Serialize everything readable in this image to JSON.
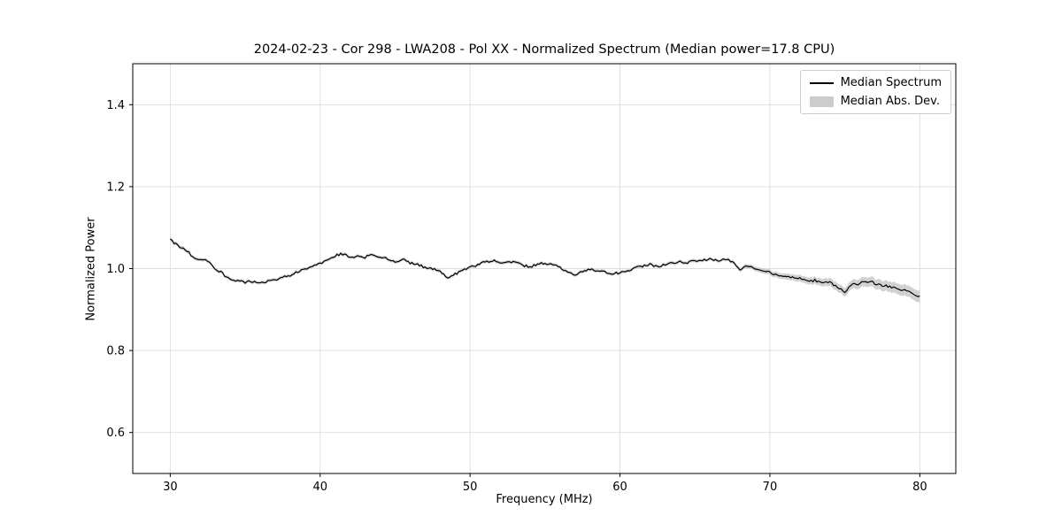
{
  "chart_data": {
    "type": "line",
    "title": "2024-02-23 - Cor 298 - LWA208 - Pol XX - Normalized Spectrum (Median power=17.8 CPU)",
    "xlabel": "Frequency (MHz)",
    "ylabel": "Normalized Power",
    "xlim": [
      27.5,
      82.4
    ],
    "ylim": [
      0.5,
      1.5
    ],
    "xticks": [
      {
        "v": 30,
        "label": "30"
      },
      {
        "v": 40,
        "label": "40"
      },
      {
        "v": 50,
        "label": "50"
      },
      {
        "v": 60,
        "label": "60"
      },
      {
        "v": 70,
        "label": "70"
      },
      {
        "v": 80,
        "label": "80"
      }
    ],
    "yticks": [
      {
        "v": 0.6,
        "label": "0.6"
      },
      {
        "v": 0.8,
        "label": "0.8"
      },
      {
        "v": 1.0,
        "label": "1.0"
      },
      {
        "v": 1.2,
        "label": "1.2"
      },
      {
        "v": 1.4,
        "label": "1.4"
      }
    ],
    "grid": true,
    "legend_position": "upper right",
    "legend": [
      "Median Spectrum",
      "Median Abs. Dev."
    ],
    "line_color": "#000000",
    "band_color": "#cccccc",
    "grid_color": "#dddddd",
    "noise_amplitude": 0.003,
    "x": [
      30,
      30.5,
      31,
      31.5,
      32,
      32.5,
      33,
      33.5,
      34,
      34.5,
      35,
      35.5,
      36,
      36.5,
      37,
      37.5,
      38,
      38.5,
      39,
      39.5,
      40,
      40.5,
      41,
      41.5,
      42,
      42.5,
      43,
      43.5,
      44,
      44.5,
      45,
      45.5,
      46,
      46.5,
      47,
      47.5,
      48,
      48.5,
      49,
      49.5,
      50,
      50.5,
      51,
      51.5,
      52,
      52.5,
      53,
      53.5,
      54,
      54.5,
      55,
      55.5,
      56,
      56.5,
      57,
      57.5,
      58,
      58.5,
      59,
      59.5,
      60,
      60.5,
      61,
      61.5,
      62,
      62.5,
      63,
      63.5,
      64,
      64.5,
      65,
      65.5,
      66,
      66.5,
      67,
      67.5,
      68,
      68.5,
      69,
      69.5,
      70,
      70.5,
      71,
      71.5,
      72,
      72.5,
      73,
      73.5,
      74,
      74.5,
      75,
      75.5,
      76,
      76.5,
      77,
      77.5,
      78,
      78.5,
      79,
      79.5,
      80
    ],
    "values": [
      1.072,
      1.055,
      1.048,
      1.03,
      1.022,
      1.018,
      1.0,
      0.988,
      0.972,
      0.97,
      0.966,
      0.969,
      0.964,
      0.97,
      0.972,
      0.98,
      0.983,
      0.993,
      0.998,
      1.008,
      1.012,
      1.022,
      1.032,
      1.036,
      1.028,
      1.03,
      1.028,
      1.033,
      1.03,
      1.024,
      1.018,
      1.022,
      1.014,
      1.01,
      1.003,
      1.0,
      0.993,
      0.977,
      0.986,
      0.997,
      1.002,
      1.01,
      1.016,
      1.02,
      1.013,
      1.019,
      1.014,
      1.008,
      1.004,
      1.011,
      1.014,
      1.009,
      1.003,
      0.989,
      0.984,
      0.992,
      1.0,
      0.994,
      0.991,
      0.988,
      0.99,
      0.992,
      1.001,
      1.006,
      1.011,
      1.004,
      1.011,
      1.013,
      1.016,
      1.014,
      1.019,
      1.021,
      1.023,
      1.019,
      1.023,
      1.016,
      0.999,
      1.007,
      1.0,
      0.996,
      0.991,
      0.984,
      0.981,
      0.979,
      0.976,
      0.971,
      0.971,
      0.967,
      0.966,
      0.953,
      0.944,
      0.961,
      0.964,
      0.969,
      0.964,
      0.959,
      0.956,
      0.949,
      0.946,
      0.941,
      0.932
    ],
    "mad": [
      0.005,
      0.005,
      0.005,
      0.004,
      0.004,
      0.004,
      0.004,
      0.004,
      0.004,
      0.004,
      0.004,
      0.004,
      0.004,
      0.004,
      0.004,
      0.004,
      0.004,
      0.004,
      0.004,
      0.004,
      0.004,
      0.004,
      0.004,
      0.004,
      0.004,
      0.004,
      0.004,
      0.004,
      0.004,
      0.004,
      0.004,
      0.004,
      0.004,
      0.004,
      0.004,
      0.004,
      0.004,
      0.004,
      0.004,
      0.004,
      0.004,
      0.004,
      0.004,
      0.004,
      0.004,
      0.004,
      0.004,
      0.004,
      0.004,
      0.004,
      0.004,
      0.004,
      0.004,
      0.004,
      0.004,
      0.004,
      0.004,
      0.004,
      0.004,
      0.004,
      0.004,
      0.004,
      0.004,
      0.004,
      0.004,
      0.004,
      0.004,
      0.004,
      0.004,
      0.004,
      0.004,
      0.004,
      0.004,
      0.004,
      0.004,
      0.0044,
      0.0048,
      0.0052,
      0.0056,
      0.006,
      0.0064,
      0.0068,
      0.0072,
      0.0076,
      0.008,
      0.0084,
      0.0088,
      0.0092,
      0.0096,
      0.01,
      0.0104,
      0.0108,
      0.0112,
      0.0116,
      0.012,
      0.0124,
      0.0128,
      0.0132,
      0.0136,
      0.014,
      0.0144
    ]
  }
}
